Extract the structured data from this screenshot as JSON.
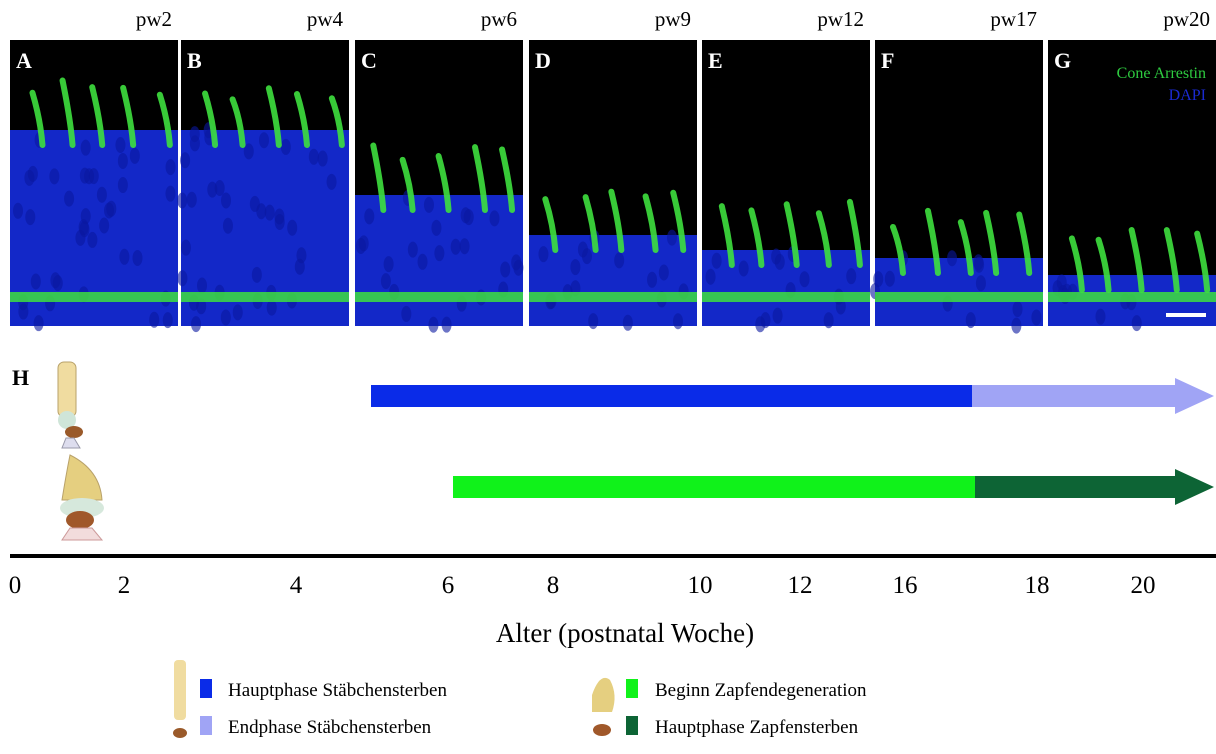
{
  "panels": [
    {
      "letter": "A",
      "label": "pw2"
    },
    {
      "letter": "B",
      "label": "pw4"
    },
    {
      "letter": "C",
      "label": "pw6"
    },
    {
      "letter": "D",
      "label": "pw9"
    },
    {
      "letter": "E",
      "label": "pw12"
    },
    {
      "letter": "F",
      "label": "pw17"
    },
    {
      "letter": "G",
      "label": "pw20"
    }
  ],
  "stain_legend": [
    "Cone Arrestin",
    "DAPI"
  ],
  "timeline": {
    "letter": "H",
    "axis_labels": [
      "0",
      "2",
      "4",
      "6",
      "8",
      "10",
      "12",
      "16",
      "18",
      "20"
    ],
    "axis_title": "Alter (postnatal Woche)"
  },
  "legend": [
    "Hauptphase Stäbchensterben",
    "Endphase Stäbchensterben",
    "Beginn Zapfendegeneration",
    "Hauptphase Zapfensterben"
  ]
}
